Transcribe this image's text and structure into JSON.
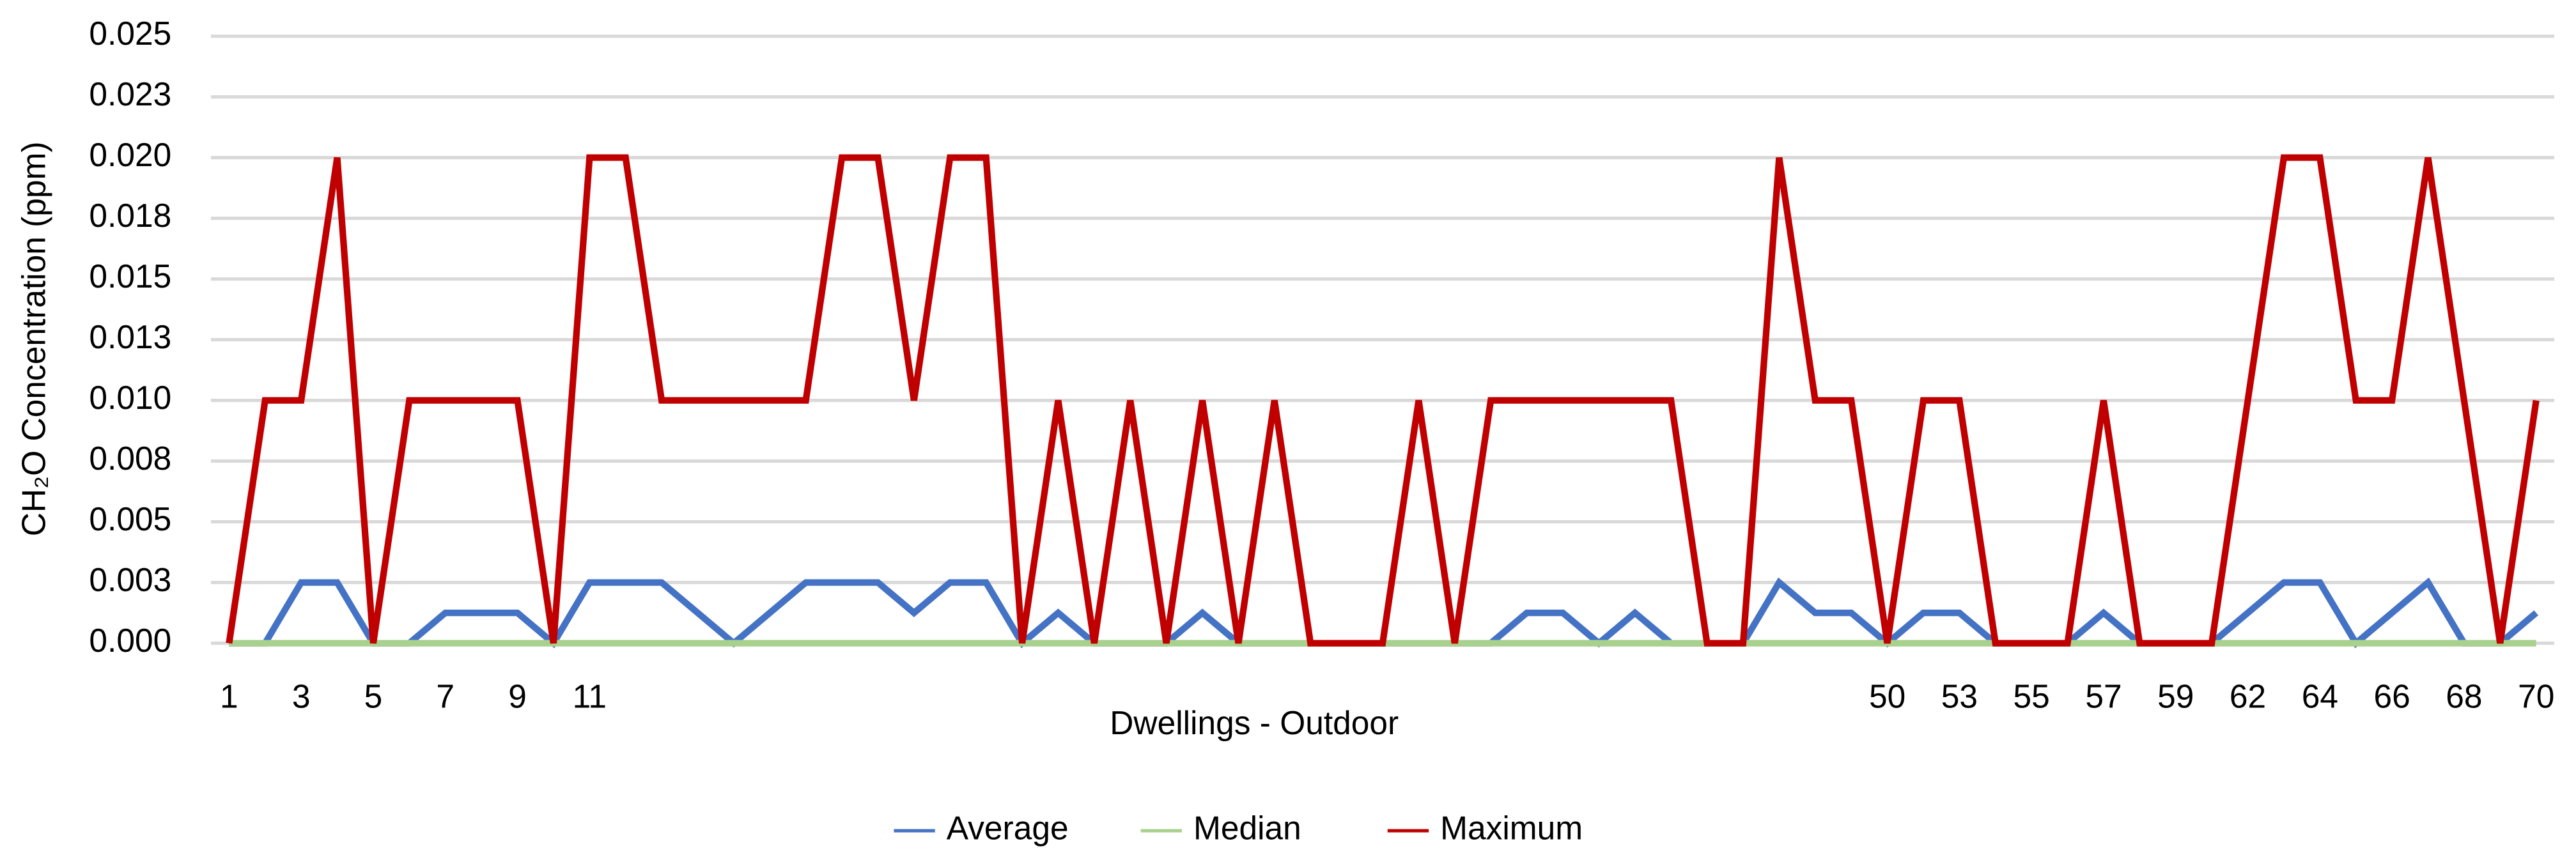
{
  "chart_data": {
    "type": "line",
    "x_label": "Dwellings - Outdoor",
    "y_label": "CH₂O Concentration (ppm)",
    "categories": [
      "1",
      null,
      "3",
      null,
      "5",
      null,
      "7",
      null,
      "9",
      null,
      "11",
      null,
      null,
      null,
      null,
      null,
      null,
      null,
      null,
      null,
      null,
      null,
      null,
      null,
      null,
      null,
      null,
      null,
      null,
      null,
      null,
      null,
      null,
      null,
      null,
      null,
      null,
      null,
      null,
      null,
      null,
      null,
      null,
      null,
      null,
      null,
      "50",
      null,
      "53",
      null,
      "55",
      null,
      "57",
      null,
      "59",
      null,
      "62",
      null,
      "64",
      null,
      "66",
      null,
      "68",
      null,
      "70"
    ],
    "series": [
      {
        "name": "Average",
        "color": "#4472c4",
        "values": [
          0,
          0,
          0.0025,
          0.0025,
          0,
          0,
          0.00125,
          0.00125,
          0.00125,
          0,
          0.0025,
          0.0025,
          0.0025,
          0.00125,
          0,
          0.00125,
          0.0025,
          0.0025,
          0.0025,
          0.00125,
          0.0025,
          0.0025,
          0,
          0.00125,
          0,
          0,
          0,
          0.00125,
          0,
          0,
          0,
          0,
          0,
          0,
          0,
          0,
          0.00125,
          0.00125,
          0,
          0.00125,
          0,
          0,
          0,
          0.0025,
          0.00125,
          0.00125,
          0,
          0.00125,
          0.00125,
          0,
          0,
          0,
          0.00125,
          0,
          0,
          0,
          0.00125,
          0.0025,
          0.0025,
          0,
          0.00125,
          0.0025,
          0,
          0,
          0.00125
        ]
      },
      {
        "name": "Median",
        "color": "#a9d18e",
        "values": [
          0,
          0,
          0,
          0,
          0,
          0,
          0,
          0,
          0,
          0,
          0,
          0,
          0,
          0,
          0,
          0,
          0,
          0,
          0,
          0,
          0,
          0,
          0,
          0,
          0,
          0,
          0,
          0,
          0,
          0,
          0,
          0,
          0,
          0,
          0,
          0,
          0,
          0,
          0,
          0,
          0,
          0,
          0,
          0,
          0,
          0,
          0,
          0,
          0,
          0,
          0,
          0,
          0,
          0,
          0,
          0,
          0,
          0,
          0,
          0,
          0,
          0,
          0,
          0,
          0
        ]
      },
      {
        "name": "Maximum",
        "color": "#c00000",
        "values": [
          0,
          0.01,
          0.01,
          0.02,
          0,
          0.01,
          0.01,
          0.01,
          0.01,
          0,
          0.02,
          0.02,
          0.01,
          0.01,
          0.01,
          0.01,
          0.01,
          0.02,
          0.02,
          0.01,
          0.02,
          0.02,
          0,
          0.01,
          0,
          0.01,
          0,
          0.01,
          0,
          0.01,
          0,
          0,
          0,
          0.01,
          0,
          0.01,
          0.01,
          0.01,
          0.01,
          0.01,
          0.01,
          0,
          0,
          0.02,
          0.01,
          0.01,
          0,
          0.01,
          0.01,
          0,
          0,
          0,
          0.01,
          0,
          0,
          0,
          0.01,
          0.02,
          0.02,
          0.01,
          0.01,
          0.02,
          0.01,
          0,
          0.01
        ]
      }
    ],
    "ylim": [
      0,
      0.025
    ],
    "yticks": [
      {
        "value": 0,
        "label": "0.000"
      },
      {
        "value": 0.0025,
        "label": "0.003"
      },
      {
        "value": 0.005,
        "label": "0.005"
      },
      {
        "value": 0.0075,
        "label": "0.008"
      },
      {
        "value": 0.01,
        "label": "0.010"
      },
      {
        "value": 0.0125,
        "label": "0.013"
      },
      {
        "value": 0.015,
        "label": "0.015"
      },
      {
        "value": 0.0175,
        "label": "0.018"
      },
      {
        "value": 0.02,
        "label": "0.020"
      },
      {
        "value": 0.0225,
        "label": "0.023"
      },
      {
        "value": 0.025,
        "label": "0.025"
      }
    ],
    "grid": true,
    "legend": "bottom"
  }
}
